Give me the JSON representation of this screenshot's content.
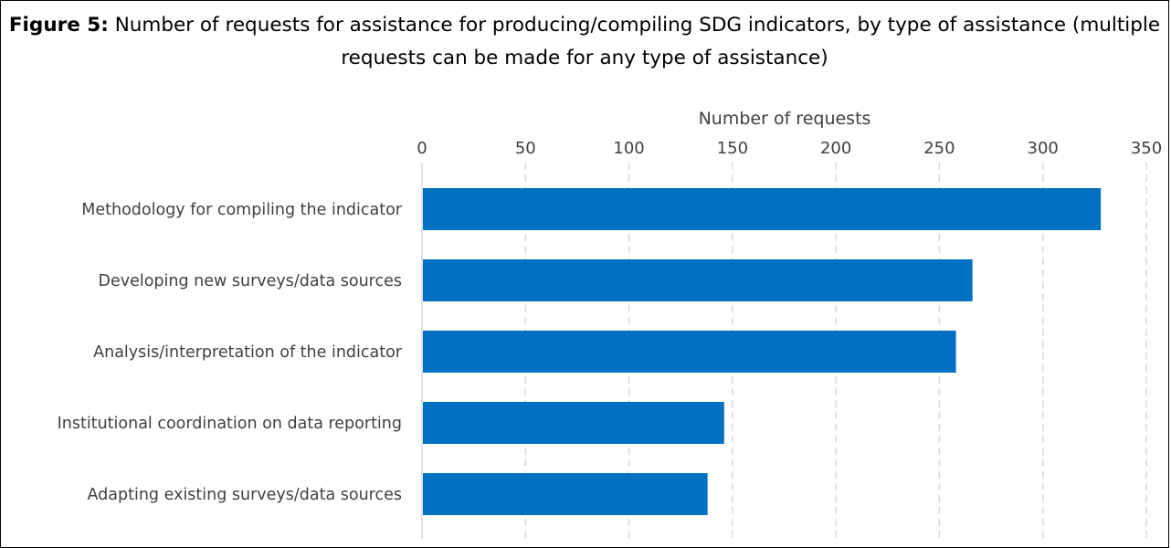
{
  "figure": {
    "label": "Figure 5:",
    "caption": "Number of requests for assistance for producing/compiling SDG indicators, by type of assistance (multiple requests can be made for any type of assistance)"
  },
  "chart_data": {
    "type": "bar",
    "orientation": "horizontal",
    "xlabel": "Number of requests",
    "ylabel": "",
    "xlim": [
      0,
      350
    ],
    "xticks": [
      0,
      50,
      100,
      150,
      200,
      250,
      300,
      350
    ],
    "x_axis_position": "top",
    "grid": "vertical-dashed",
    "categories": [
      "Methodology for compiling the indicator",
      "Developing new surveys/data sources",
      "Analysis/interpretation of the indicator",
      "Institutional coordination on data reporting",
      "Adapting existing surveys/data sources"
    ],
    "values": [
      328,
      266,
      258,
      146,
      138
    ],
    "color": "#0070C0"
  }
}
